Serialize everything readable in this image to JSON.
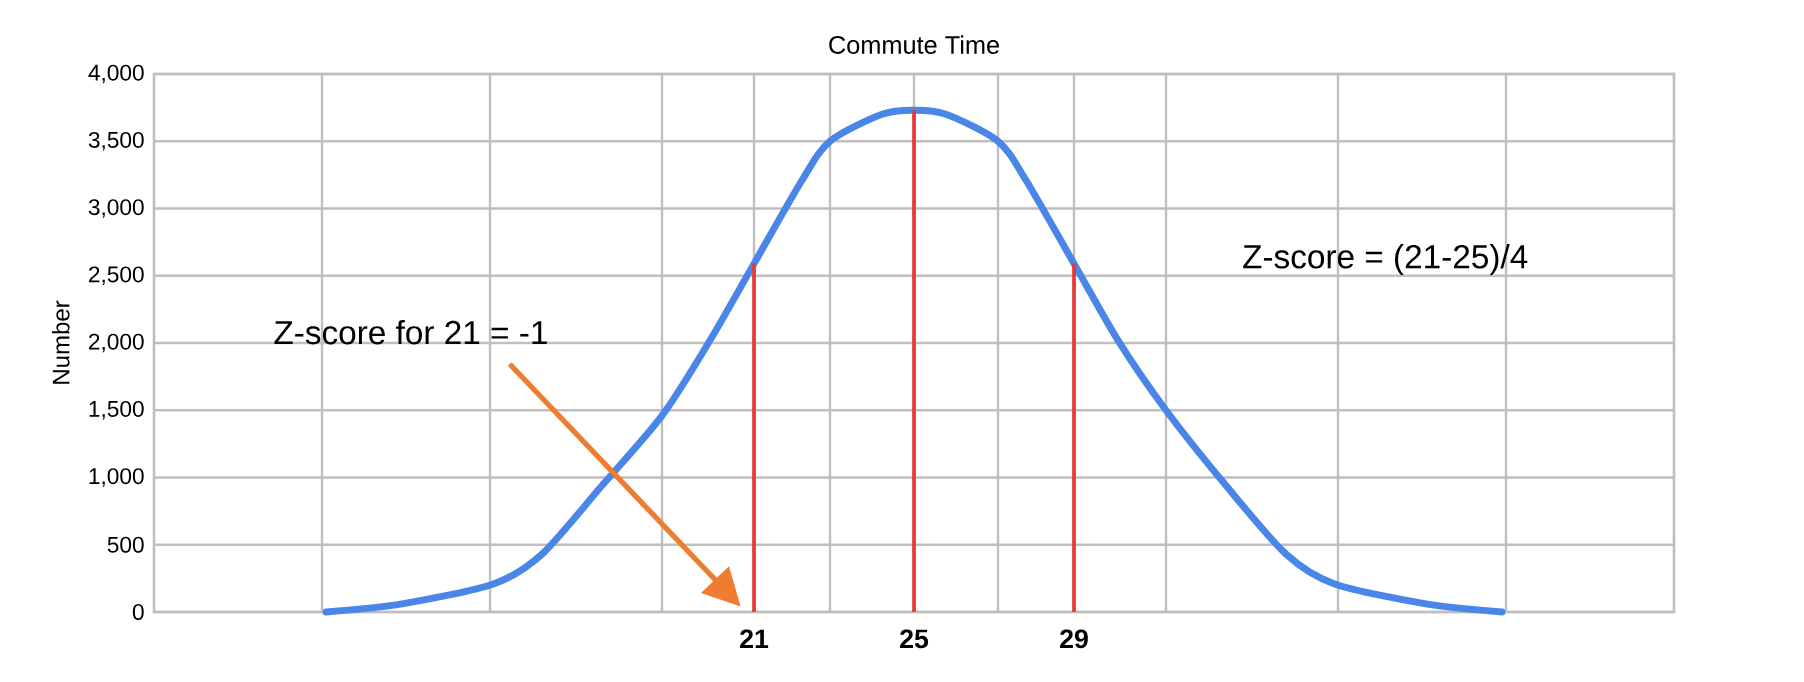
{
  "chart_data": {
    "type": "line",
    "title": "Commute Time",
    "ylabel": "Number",
    "xlim": [
      6,
      44
    ],
    "ylim": [
      0,
      4000
    ],
    "xticks": [
      {
        "value": 10.2,
        "label": null
      },
      {
        "value": 14.4,
        "label": null
      },
      {
        "value": 18.7,
        "label": null
      },
      21,
      {
        "value": 22.9,
        "label": null
      },
      25,
      {
        "value": 27.1,
        "label": null
      },
      29,
      {
        "value": 31.3,
        "label": null
      },
      {
        "value": 35.6,
        "label": null
      },
      {
        "value": 39.8,
        "label": null
      }
    ],
    "yticks": [
      0,
      500,
      {
        "value": 1000,
        "label": "1,000"
      },
      {
        "value": 1500,
        "label": "1,500"
      },
      {
        "value": 2000,
        "label": "2,000"
      },
      {
        "value": 2500,
        "label": "2,500"
      },
      {
        "value": 3000,
        "label": "3,000"
      },
      {
        "value": 3500,
        "label": "3,500"
      },
      {
        "value": 4000,
        "label": "4,000"
      }
    ],
    "grid": true,
    "series": [
      {
        "color": "#4a86e8",
        "x": [
          10.3,
          12.2,
          14.5,
          15.7,
          17.2,
          18.7,
          19.9,
          21,
          22.2,
          22.9,
          24.2,
          25,
          25.8,
          27.1,
          27.8,
          29,
          30.1,
          31.3,
          32.8,
          34.3,
          35.5,
          37.8,
          39.7
        ],
        "values": [
          0,
          60,
          210,
          430,
          940,
          1460,
          2020,
          2590,
          3210,
          3500,
          3700,
          3730,
          3700,
          3500,
          3210,
          2590,
          2020,
          1500,
          940,
          430,
          210,
          60,
          0
        ]
      },
      {
        "type": "bar",
        "color": "#e53935",
        "x": [
          21,
          25,
          29
        ],
        "values": [
          2590,
          3730,
          2590
        ]
      }
    ],
    "annotations": [
      "Z-score for 21 = -1",
      "Z-score = (21-25)/4"
    ]
  }
}
